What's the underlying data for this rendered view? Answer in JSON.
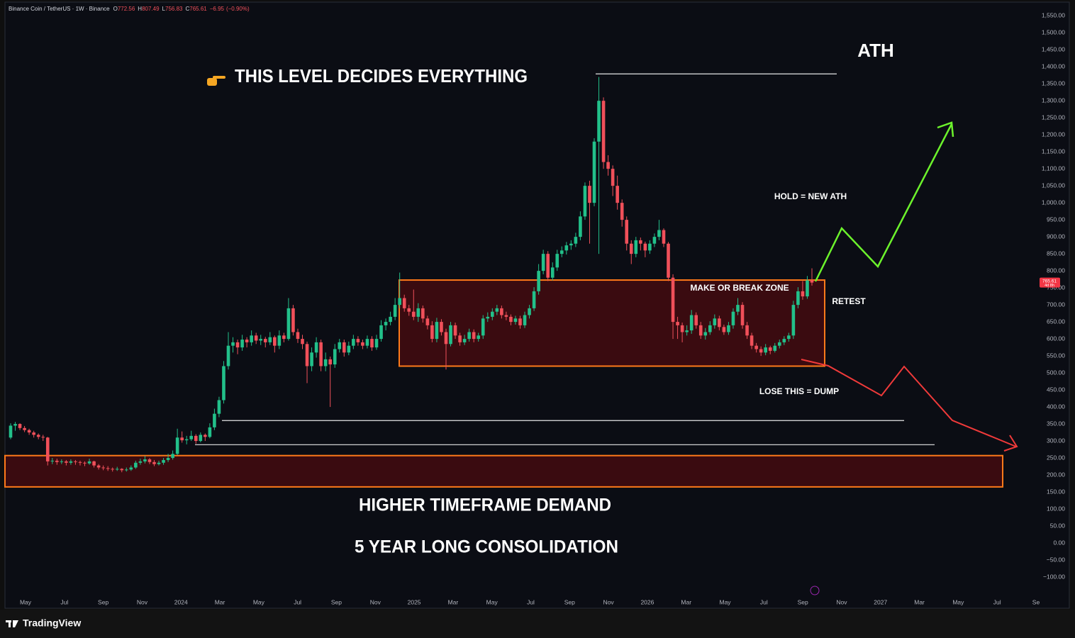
{
  "header": {
    "symbol": "Binance Coin / TetherUS · 1W · Binance",
    "open_label": "O",
    "high_label": "H",
    "low_label": "L",
    "close_label": "C",
    "change": "−6.95",
    "change_pct": "(−0.90%)"
  },
  "footer": {
    "brand": "TradingView"
  },
  "chart_data": {
    "type": "candlestick",
    "up_color": "#22c08a",
    "down_color": "#f0505a",
    "ylim": [
      -150,
      1590
    ],
    "yticks": [
      {
        "value": 1550,
        "label": "1,550.00"
      },
      {
        "value": 1500,
        "label": "1,500.00"
      },
      {
        "value": 1450,
        "label": "1,450.00"
      },
      {
        "value": 1400,
        "label": "1,400.00"
      },
      {
        "value": 1350,
        "label": "1,350.00"
      },
      {
        "value": 1300,
        "label": "1,300.00"
      },
      {
        "value": 1250,
        "label": "1,250.00"
      },
      {
        "value": 1200,
        "label": "1,200.00"
      },
      {
        "value": 1150,
        "label": "1,150.00"
      },
      {
        "value": 1100,
        "label": "1,100.00"
      },
      {
        "value": 1050,
        "label": "1,050.00"
      },
      {
        "value": 1000,
        "label": "1,000.00"
      },
      {
        "value": 950,
        "label": "950.00"
      },
      {
        "value": 900,
        "label": "900.00"
      },
      {
        "value": 850,
        "label": "850.00"
      },
      {
        "value": 800,
        "label": "800.00"
      },
      {
        "value": 750,
        "label": "750.00"
      },
      {
        "value": 700,
        "label": "700.00"
      },
      {
        "value": 650,
        "label": "650.00"
      },
      {
        "value": 600,
        "label": "600.00"
      },
      {
        "value": 550,
        "label": "550.00"
      },
      {
        "value": 500,
        "label": "500.00"
      },
      {
        "value": 450,
        "label": "450.00"
      },
      {
        "value": 400,
        "label": "400.00"
      },
      {
        "value": 350,
        "label": "350.00"
      },
      {
        "value": 300,
        "label": "300.00"
      },
      {
        "value": 250,
        "label": "250.00"
      },
      {
        "value": 200,
        "label": "200.00"
      },
      {
        "value": 150,
        "label": "150.00"
      },
      {
        "value": 100,
        "label": "100.00"
      },
      {
        "value": 50,
        "label": "50.00"
      },
      {
        "value": 0,
        "label": "0.00"
      },
      {
        "value": -50,
        "label": "−50.00"
      },
      {
        "value": -100,
        "label": "−100.00"
      }
    ],
    "x_labels": [
      "May",
      "Jul",
      "Sep",
      "Nov",
      "2024",
      "Mar",
      "May",
      "Jul",
      "Sep",
      "Nov",
      "2025",
      "Mar",
      "May",
      "Jul",
      "Sep",
      "Nov",
      "2026",
      "Mar",
      "May",
      "Jul",
      "Sep",
      "Nov",
      "2027",
      "Mar",
      "May",
      "Jul",
      "Se"
    ],
    "countdown": "4d 8h",
    "zones": [
      {
        "top": 773,
        "bottom": 520
      },
      {
        "top": 257,
        "bottom": 165
      }
    ],
    "levels": [
      1379,
      360,
      289
    ],
    "annotations": {
      "title": "THIS LEVEL DECIDES EVERYTHING",
      "ath": "ATH",
      "hold": "HOLD = NEW ATH",
      "zone": "MAKE OR BREAK ZONE",
      "retest": "RETEST",
      "lose": "LOSE THIS = DUMP",
      "demand": "HIGHER TIMEFRAME DEMAND",
      "consolidation": "5 YEAR LONG CONSOLIDATION"
    },
    "candles": [
      [
        310,
        352,
        305,
        345
      ],
      [
        345,
        356,
        330,
        350
      ],
      [
        350,
        352,
        332,
        338
      ],
      [
        338,
        344,
        326,
        332
      ],
      [
        332,
        336,
        318,
        325
      ],
      [
        325,
        330,
        310,
        318
      ],
      [
        318,
        322,
        305,
        312
      ],
      [
        312,
        318,
        300,
        310
      ],
      [
        310,
        312,
        228,
        240
      ],
      [
        240,
        250,
        232,
        242
      ],
      [
        242,
        248,
        230,
        238
      ],
      [
        238,
        246,
        232,
        240
      ],
      [
        240,
        244,
        228,
        236
      ],
      [
        236,
        246,
        230,
        240
      ],
      [
        240,
        244,
        230,
        238
      ],
      [
        238,
        242,
        228,
        236
      ],
      [
        236,
        240,
        226,
        234
      ],
      [
        234,
        248,
        230,
        240
      ],
      [
        240,
        242,
        222,
        228
      ],
      [
        228,
        232,
        216,
        222
      ],
      [
        222,
        228,
        214,
        220
      ],
      [
        220,
        226,
        212,
        218
      ],
      [
        218,
        222,
        210,
        216
      ],
      [
        216,
        224,
        212,
        218
      ],
      [
        218,
        220,
        208,
        214
      ],
      [
        214,
        222,
        210,
        216
      ],
      [
        216,
        228,
        212,
        222
      ],
      [
        222,
        242,
        218,
        236
      ],
      [
        236,
        248,
        230,
        240
      ],
      [
        240,
        256,
        234,
        246
      ],
      [
        246,
        250,
        232,
        238
      ],
      [
        238,
        244,
        226,
        232
      ],
      [
        232,
        242,
        228,
        236
      ],
      [
        236,
        250,
        230,
        244
      ],
      [
        244,
        262,
        238,
        250
      ],
      [
        250,
        272,
        245,
        262
      ],
      [
        262,
        336,
        258,
        310
      ],
      [
        310,
        328,
        295,
        302
      ],
      [
        302,
        315,
        290,
        305
      ],
      [
        305,
        330,
        300,
        315
      ],
      [
        315,
        320,
        292,
        300
      ],
      [
        300,
        325,
        296,
        318
      ],
      [
        318,
        322,
        300,
        312
      ],
      [
        312,
        352,
        308,
        340
      ],
      [
        340,
        395,
        332,
        380
      ],
      [
        380,
        430,
        370,
        420
      ],
      [
        420,
        535,
        410,
        520
      ],
      [
        520,
        620,
        510,
        580
      ],
      [
        580,
        605,
        560,
        590
      ],
      [
        590,
        598,
        555,
        575
      ],
      [
        575,
        612,
        565,
        598
      ],
      [
        598,
        605,
        575,
        590
      ],
      [
        590,
        625,
        580,
        610
      ],
      [
        610,
        618,
        585,
        595
      ],
      [
        595,
        612,
        582,
        600
      ],
      [
        600,
        606,
        575,
        590
      ],
      [
        590,
        620,
        582,
        605
      ],
      [
        605,
        610,
        560,
        580
      ],
      [
        580,
        625,
        570,
        610
      ],
      [
        610,
        618,
        590,
        600
      ],
      [
        600,
        720,
        595,
        690
      ],
      [
        690,
        700,
        610,
        620
      ],
      [
        620,
        630,
        588,
        600
      ],
      [
        600,
        612,
        570,
        585
      ],
      [
        585,
        592,
        470,
        520
      ],
      [
        520,
        575,
        505,
        560
      ],
      [
        560,
        605,
        545,
        590
      ],
      [
        590,
        598,
        505,
        520
      ],
      [
        520,
        560,
        505,
        540
      ],
      [
        540,
        548,
        400,
        525
      ],
      [
        525,
        585,
        515,
        570
      ],
      [
        570,
        600,
        560,
        590
      ],
      [
        590,
        598,
        548,
        560
      ],
      [
        560,
        592,
        552,
        580
      ],
      [
        580,
        612,
        570,
        600
      ],
      [
        600,
        608,
        580,
        590
      ],
      [
        590,
        598,
        570,
        580
      ],
      [
        580,
        610,
        572,
        600
      ],
      [
        600,
        608,
        565,
        575
      ],
      [
        575,
        612,
        568,
        600
      ],
      [
        600,
        655,
        592,
        640
      ],
      [
        640,
        660,
        625,
        650
      ],
      [
        650,
        680,
        640,
        665
      ],
      [
        665,
        720,
        655,
        700
      ],
      [
        700,
        795,
        690,
        720
      ],
      [
        720,
        730,
        680,
        690
      ],
      [
        690,
        700,
        668,
        680
      ],
      [
        680,
        745,
        655,
        665
      ],
      [
        665,
        705,
        650,
        690
      ],
      [
        690,
        698,
        648,
        660
      ],
      [
        660,
        668,
        628,
        640
      ],
      [
        640,
        652,
        590,
        600
      ],
      [
        600,
        662,
        590,
        650
      ],
      [
        650,
        658,
        610,
        620
      ],
      [
        620,
        630,
        510,
        585
      ],
      [
        585,
        650,
        578,
        640
      ],
      [
        640,
        648,
        600,
        610
      ],
      [
        610,
        618,
        580,
        590
      ],
      [
        590,
        612,
        582,
        600
      ],
      [
        600,
        630,
        592,
        620
      ],
      [
        620,
        628,
        590,
        600
      ],
      [
        600,
        618,
        592,
        610
      ],
      [
        610,
        670,
        600,
        660
      ],
      [
        660,
        678,
        650,
        665
      ],
      [
        665,
        690,
        655,
        680
      ],
      [
        680,
        700,
        670,
        690
      ],
      [
        690,
        698,
        660,
        670
      ],
      [
        670,
        680,
        655,
        665
      ],
      [
        665,
        672,
        640,
        650
      ],
      [
        650,
        668,
        642,
        660
      ],
      [
        660,
        668,
        630,
        640
      ],
      [
        640,
        680,
        632,
        670
      ],
      [
        670,
        700,
        660,
        690
      ],
      [
        690,
        752,
        682,
        740
      ],
      [
        740,
        820,
        730,
        800
      ],
      [
        800,
        862,
        790,
        850
      ],
      [
        850,
        858,
        770,
        780
      ],
      [
        780,
        825,
        772,
        810
      ],
      [
        810,
        862,
        800,
        850
      ],
      [
        850,
        872,
        840,
        860
      ],
      [
        860,
        885,
        848,
        875
      ],
      [
        875,
        890,
        862,
        880
      ],
      [
        880,
        912,
        870,
        900
      ],
      [
        900,
        975,
        890,
        960
      ],
      [
        960,
        1060,
        950,
        1050
      ],
      [
        1050,
        1065,
        880,
        1000
      ],
      [
        1000,
        1190,
        990,
        1180
      ],
      [
        1180,
        1370,
        850,
        1300
      ],
      [
        1300,
        1310,
        1100,
        1120
      ],
      [
        1120,
        1140,
        1080,
        1100
      ],
      [
        1100,
        1110,
        1020,
        1050
      ],
      [
        1050,
        1080,
        980,
        1000
      ],
      [
        1000,
        1010,
        930,
        950
      ],
      [
        950,
        960,
        860,
        880
      ],
      [
        880,
        890,
        820,
        850
      ],
      [
        850,
        900,
        840,
        890
      ],
      [
        890,
        898,
        860,
        880
      ],
      [
        880,
        886,
        840,
        860
      ],
      [
        860,
        890,
        850,
        880
      ],
      [
        880,
        910,
        870,
        900
      ],
      [
        900,
        950,
        890,
        920
      ],
      [
        920,
        925,
        870,
        880
      ],
      [
        880,
        885,
        770,
        780
      ],
      [
        780,
        790,
        600,
        650
      ],
      [
        650,
        665,
        600,
        640
      ],
      [
        640,
        648,
        590,
        620
      ],
      [
        620,
        640,
        610,
        625
      ],
      [
        625,
        685,
        615,
        670
      ],
      [
        670,
        678,
        630,
        640
      ],
      [
        640,
        650,
        600,
        610
      ],
      [
        610,
        632,
        598,
        620
      ],
      [
        620,
        652,
        612,
        640
      ],
      [
        640,
        672,
        630,
        660
      ],
      [
        660,
        668,
        625,
        635
      ],
      [
        635,
        642,
        612,
        620
      ],
      [
        620,
        650,
        612,
        640
      ],
      [
        640,
        690,
        630,
        680
      ],
      [
        680,
        720,
        670,
        700
      ],
      [
        700,
        708,
        630,
        640
      ],
      [
        640,
        650,
        600,
        610
      ],
      [
        610,
        618,
        570,
        580
      ],
      [
        580,
        588,
        560,
        570
      ],
      [
        570,
        578,
        550,
        560
      ],
      [
        560,
        585,
        552,
        575
      ],
      [
        575,
        580,
        555,
        565
      ],
      [
        565,
        588,
        560,
        580
      ],
      [
        580,
        598,
        572,
        590
      ],
      [
        590,
        608,
        582,
        600
      ],
      [
        600,
        618,
        592,
        610
      ],
      [
        610,
        712,
        600,
        700
      ],
      [
        700,
        752,
        690,
        740
      ],
      [
        740,
        770,
        715,
        725
      ],
      [
        725,
        785,
        718,
        772
      ],
      [
        772.56,
        807.49,
        756.83,
        765.61
      ]
    ]
  }
}
